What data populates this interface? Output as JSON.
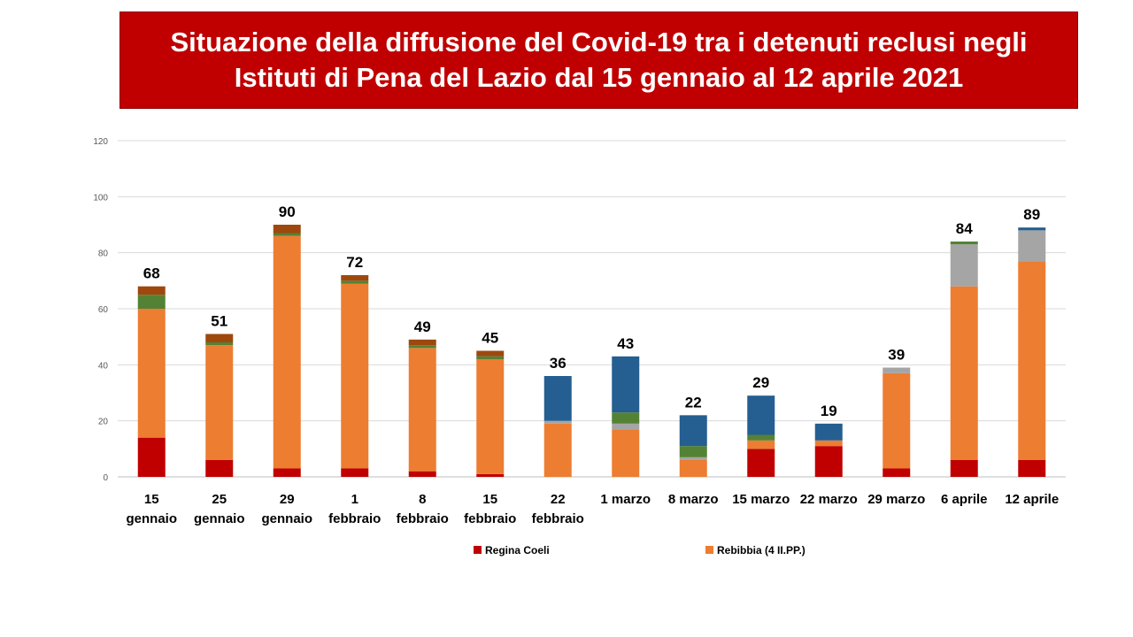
{
  "title": {
    "line1": "Situazione della diffusione del Covid-19 tra i detenuti reclusi negli",
    "line2": "Istituti di Pena del Lazio dal 15 gennaio al 12 aprile 2021"
  },
  "colors": {
    "banner": "#c00000",
    "Regina Coeli": "#c00000",
    "Rebibbia (4 II.PP.)": "#ed7d31",
    "gray": "#a5a5a5",
    "green": "#548235",
    "brown": "#9e480e",
    "blue": "#255e91",
    "grid": "#d9d9d9"
  },
  "chart_data": {
    "type": "bar",
    "stacked": true,
    "title": "Situazione della diffusione del Covid-19 tra i detenuti reclusi negli Istituti di Pena del Lazio dal 15 gennaio al 12 aprile 2021",
    "ylim": [
      0,
      120
    ],
    "yticks": [
      0,
      20,
      40,
      60,
      80,
      100,
      120
    ],
    "grid": true,
    "legend_position": "bottom",
    "categories": [
      [
        "15",
        "gennaio"
      ],
      [
        "25",
        "gennaio"
      ],
      [
        "29",
        "gennaio"
      ],
      [
        "1",
        "febbraio"
      ],
      [
        "8",
        "febbraio"
      ],
      [
        "15",
        "febbraio"
      ],
      [
        "22",
        "febbraio"
      ],
      [
        "1 marzo"
      ],
      [
        "8 marzo"
      ],
      [
        "15 marzo"
      ],
      [
        "22 marzo"
      ],
      [
        "29 marzo"
      ],
      [
        "6 aprile"
      ],
      [
        "12 aprile"
      ]
    ],
    "series": [
      {
        "name": "Regina Coeli",
        "color_key": "Regina Coeli",
        "values": [
          14,
          6,
          3,
          3,
          2,
          1,
          0,
          0,
          0,
          10,
          11,
          3,
          6,
          6
        ]
      },
      {
        "name": "Rebibbia (4 II.PP.)",
        "color_key": "Rebibbia (4 II.PP.)",
        "values": [
          46,
          41,
          83,
          66,
          44,
          41,
          19,
          17,
          6,
          3,
          2,
          34,
          62,
          71
        ]
      },
      {
        "color_key": "gray",
        "values": [
          0,
          0,
          0,
          0,
          0,
          0,
          1,
          2,
          1,
          0,
          0,
          2,
          15,
          11
        ]
      },
      {
        "color_key": "green",
        "values": [
          5,
          1,
          1,
          1,
          1,
          1,
          0,
          4,
          4,
          2,
          0,
          0,
          1,
          0
        ]
      },
      {
        "color_key": "brown",
        "values": [
          3,
          3,
          3,
          2,
          2,
          2,
          0,
          0,
          0,
          0,
          0,
          0,
          0,
          0
        ]
      },
      {
        "color_key": "blue",
        "values": [
          0,
          0,
          0,
          0,
          0,
          0,
          16,
          20,
          11,
          14,
          6,
          0,
          0,
          1
        ]
      }
    ],
    "totals": [
      68,
      51,
      90,
      72,
      49,
      45,
      36,
      43,
      22,
      29,
      19,
      39,
      84,
      89
    ],
    "legend": [
      {
        "label": "Regina Coeli",
        "color_key": "Regina Coeli"
      },
      {
        "label": "Rebibbia (4 II.PP.)",
        "color_key": "Rebibbia (4 II.PP.)"
      }
    ]
  }
}
